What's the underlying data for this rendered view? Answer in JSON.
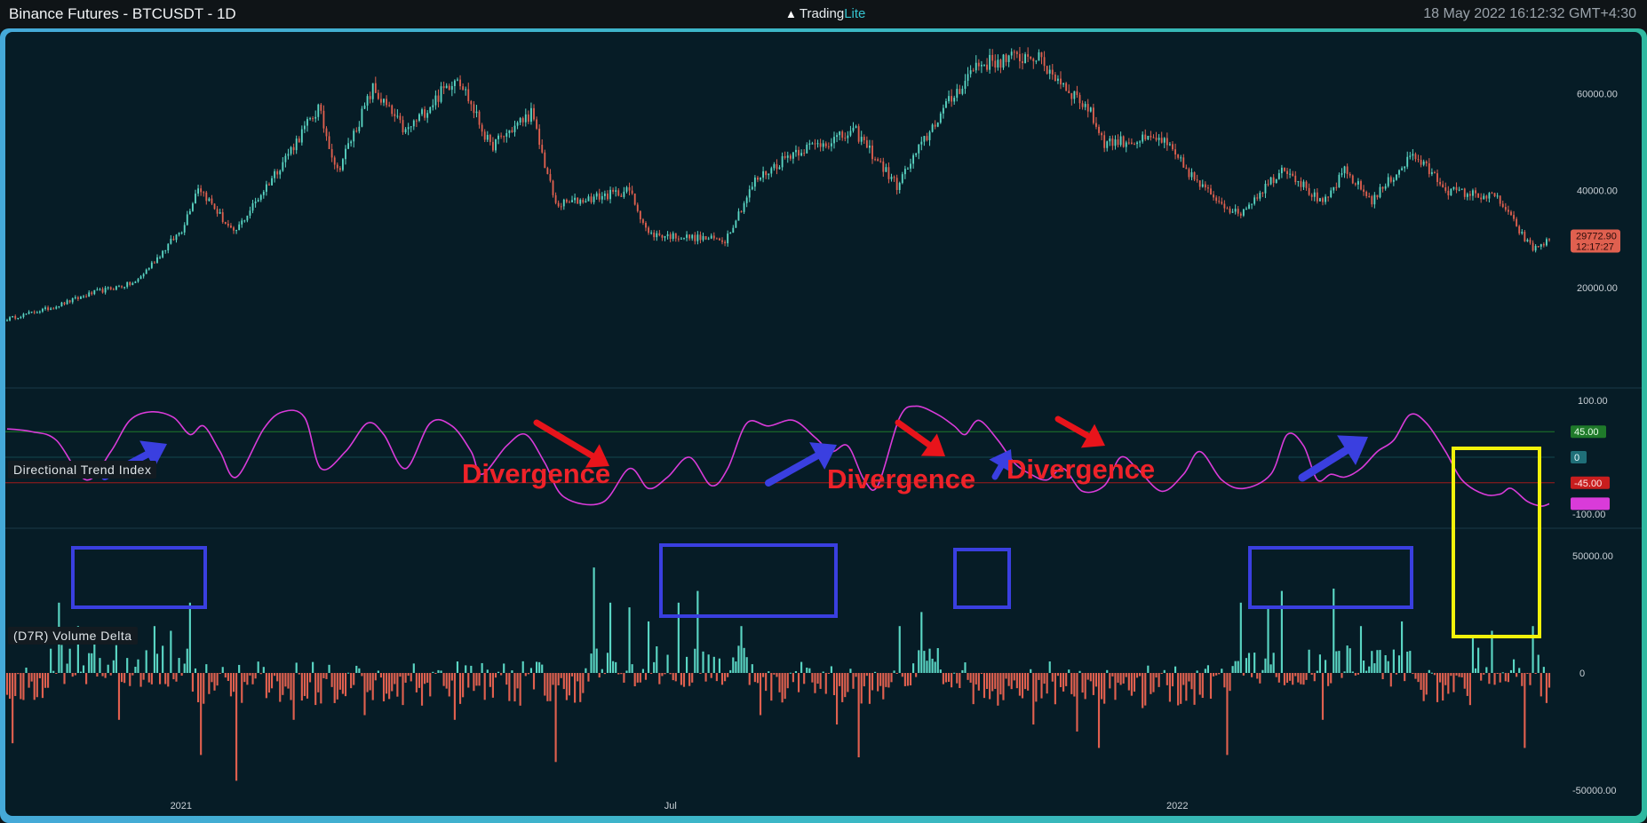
{
  "header": {
    "title": "Binance Futures - BTCUSDT - 1D",
    "brand_name": "Trading",
    "brand_suffix": "Lite",
    "timestamp": "18 May 2022 16:12:32 GMT+4:30"
  },
  "colors": {
    "background": "#061c26",
    "frame": "#3bb8c6",
    "up": "#5ad6c4",
    "down": "#e0604f",
    "dti_line": "#d93bd9",
    "upper_level": "#1f7a2a",
    "lower_level": "#a11b1b",
    "annotation_text": "#ee2229",
    "box_blue": "#3a3fe0",
    "box_yellow": "#f2f20a"
  },
  "indicator": {
    "label": "Directional Trend Index"
  },
  "volume_delta": {
    "label": "(D7R) Volume Delta"
  },
  "annotations": {
    "divergence_1": "Divergence",
    "divergence_2": "Divergence",
    "divergence_3": "Divergence"
  },
  "chart_data": [
    {
      "type": "candlestick",
      "price_ticks": [
        "60000.00",
        "40000.00",
        "20000.00"
      ],
      "last_price": "29772.90",
      "countdown": "12:17:27",
      "x_ticks": [
        "2021",
        "Jul",
        "2022"
      ],
      "ylim": [
        0,
        72000
      ],
      "close_path": [
        [
          "2020-10-30",
          13500
        ],
        [
          "2020-11-15",
          15800
        ],
        [
          "2020-12-01",
          19000
        ],
        [
          "2020-12-16",
          21000
        ],
        [
          "2021-01-02",
          32000
        ],
        [
          "2021-01-08",
          41000
        ],
        [
          "2021-01-21",
          31000
        ],
        [
          "2021-02-08",
          46000
        ],
        [
          "2021-02-21",
          57000
        ],
        [
          "2021-02-28",
          44000
        ],
        [
          "2021-03-13",
          61000
        ],
        [
          "2021-03-25",
          52000
        ],
        [
          "2021-04-13",
          64000
        ],
        [
          "2021-04-25",
          49000
        ],
        [
          "2021-05-10",
          56000
        ],
        [
          "2021-05-19",
          37000
        ],
        [
          "2021-06-15",
          40000
        ],
        [
          "2021-06-22",
          31000
        ],
        [
          "2021-07-20",
          29800
        ],
        [
          "2021-07-31",
          42000
        ],
        [
          "2021-08-14",
          48000
        ],
        [
          "2021-09-06",
          52000
        ],
        [
          "2021-09-21",
          41000
        ],
        [
          "2021-10-06",
          55000
        ],
        [
          "2021-10-20",
          66000
        ],
        [
          "2021-11-10",
          68000
        ],
        [
          "2021-11-30",
          57000
        ],
        [
          "2021-12-06",
          50000
        ],
        [
          "2021-12-27",
          50500
        ],
        [
          "2022-01-10",
          41000
        ],
        [
          "2022-01-24",
          35000
        ],
        [
          "2022-02-10",
          45000
        ],
        [
          "2022-02-24",
          37000
        ],
        [
          "2022-03-04",
          44000
        ],
        [
          "2022-03-14",
          38000
        ],
        [
          "2022-03-29",
          47500
        ],
        [
          "2022-04-11",
          40000
        ],
        [
          "2022-04-29",
          38500
        ],
        [
          "2022-05-09",
          30000
        ],
        [
          "2022-05-12",
          28000
        ],
        [
          "2022-05-18",
          29772.9
        ]
      ]
    },
    {
      "type": "line",
      "name": "Directional Trend Index",
      "ticks": [
        "100.00",
        "-100.00"
      ],
      "levels": [
        "45.00",
        "0",
        "-45.00"
      ],
      "ylim": [
        -122,
        122
      ],
      "points": [
        [
          "2020-10-30",
          50
        ],
        [
          "2020-11-08",
          45
        ],
        [
          "2020-11-17",
          30
        ],
        [
          "2020-11-28",
          -40
        ],
        [
          "2020-12-07",
          10
        ],
        [
          "2020-12-14",
          65
        ],
        [
          "2020-12-22",
          80
        ],
        [
          "2020-12-30",
          70
        ],
        [
          "2021-01-05",
          40
        ],
        [
          "2021-01-10",
          55
        ],
        [
          "2021-01-16",
          10
        ],
        [
          "2021-01-22",
          -35
        ],
        [
          "2021-02-01",
          50
        ],
        [
          "2021-02-08",
          80
        ],
        [
          "2021-02-16",
          70
        ],
        [
          "2021-02-22",
          -20
        ],
        [
          "2021-03-03",
          10
        ],
        [
          "2021-03-11",
          60
        ],
        [
          "2021-03-17",
          40
        ],
        [
          "2021-03-25",
          -20
        ],
        [
          "2021-04-03",
          60
        ],
        [
          "2021-04-11",
          55
        ],
        [
          "2021-04-18",
          10
        ],
        [
          "2021-04-22",
          -30
        ],
        [
          "2021-05-01",
          20
        ],
        [
          "2021-05-08",
          40
        ],
        [
          "2021-05-15",
          -10
        ],
        [
          "2021-05-22",
          -70
        ],
        [
          "2021-06-05",
          -80
        ],
        [
          "2021-06-15",
          -20
        ],
        [
          "2021-06-22",
          -55
        ],
        [
          "2021-06-29",
          -35
        ],
        [
          "2021-07-07",
          0
        ],
        [
          "2021-07-15",
          -50
        ],
        [
          "2021-07-21",
          -20
        ],
        [
          "2021-07-28",
          60
        ],
        [
          "2021-08-05",
          55
        ],
        [
          "2021-08-14",
          65
        ],
        [
          "2021-08-22",
          35
        ],
        [
          "2021-08-28",
          10
        ],
        [
          "2021-09-03",
          20
        ],
        [
          "2021-09-09",
          -40
        ],
        [
          "2021-09-14",
          -50
        ],
        [
          "2021-09-22",
          70
        ],
        [
          "2021-09-28",
          90
        ],
        [
          "2021-10-06",
          75
        ],
        [
          "2021-10-12",
          55
        ],
        [
          "2021-10-16",
          40
        ],
        [
          "2021-10-21",
          65
        ],
        [
          "2021-10-28",
          30
        ],
        [
          "2021-11-03",
          -10
        ],
        [
          "2021-11-09",
          -30
        ],
        [
          "2021-11-15",
          -40
        ],
        [
          "2021-11-21",
          -20
        ],
        [
          "2021-11-28",
          -60
        ],
        [
          "2021-12-06",
          -50
        ],
        [
          "2021-12-12",
          0
        ],
        [
          "2021-12-18",
          -20
        ],
        [
          "2021-12-27",
          -60
        ],
        [
          "2022-01-04",
          -30
        ],
        [
          "2022-01-10",
          10
        ],
        [
          "2022-01-18",
          -40
        ],
        [
          "2022-01-26",
          -55
        ],
        [
          "2022-02-05",
          -30
        ],
        [
          "2022-02-11",
          40
        ],
        [
          "2022-02-17",
          20
        ],
        [
          "2022-02-22",
          -40
        ],
        [
          "2022-02-27",
          -30
        ],
        [
          "2022-03-04",
          -35
        ],
        [
          "2022-03-10",
          -20
        ],
        [
          "2022-03-16",
          10
        ],
        [
          "2022-03-22",
          30
        ],
        [
          "2022-03-28",
          75
        ],
        [
          "2022-04-03",
          60
        ],
        [
          "2022-04-10",
          10
        ],
        [
          "2022-04-16",
          -40
        ],
        [
          "2022-04-24",
          -65
        ],
        [
          "2022-04-30",
          -65
        ],
        [
          "2022-05-04",
          -55
        ],
        [
          "2022-05-10",
          -78
        ],
        [
          "2022-05-15",
          -86
        ],
        [
          "2022-05-18",
          -82
        ]
      ]
    },
    {
      "type": "bar",
      "name": "(D7R) Volume Delta",
      "ticks": [
        "50000.00",
        "0",
        "-50000.00"
      ],
      "ylim": [
        -61000,
        61000
      ],
      "spikes": [
        [
          "2020-11-01",
          -30000
        ],
        [
          "2020-11-18",
          30000
        ],
        [
          "2020-11-25",
          20000
        ],
        [
          "2020-12-01",
          15000
        ],
        [
          "2020-12-10",
          -20000
        ],
        [
          "2020-12-23",
          20000
        ],
        [
          "2020-12-29",
          18000
        ],
        [
          "2021-01-05",
          30000
        ],
        [
          "2021-01-09",
          -35000
        ],
        [
          "2021-01-22",
          -46000
        ],
        [
          "2021-02-12",
          -20000
        ],
        [
          "2021-03-10",
          -18000
        ],
        [
          "2021-04-12",
          -20000
        ],
        [
          "2021-05-19",
          -38000
        ],
        [
          "2021-06-02",
          45000
        ],
        [
          "2021-06-08",
          30000
        ],
        [
          "2021-06-15",
          28000
        ],
        [
          "2021-06-22",
          22000
        ],
        [
          "2021-07-03",
          30000
        ],
        [
          "2021-07-10",
          35000
        ],
        [
          "2021-07-26",
          20000
        ],
        [
          "2021-08-02",
          -18000
        ],
        [
          "2021-08-30",
          -22000
        ],
        [
          "2021-09-07",
          -36000
        ],
        [
          "2021-09-22",
          20000
        ],
        [
          "2021-09-30",
          26000
        ],
        [
          "2021-11-10",
          -22000
        ],
        [
          "2021-11-26",
          -25000
        ],
        [
          "2021-12-04",
          -32000
        ],
        [
          "2021-12-20",
          -15000
        ],
        [
          "2022-01-20",
          -35000
        ],
        [
          "2022-01-25",
          30000
        ],
        [
          "2022-02-04",
          28000
        ],
        [
          "2022-02-09",
          35000
        ],
        [
          "2022-02-24",
          -20000
        ],
        [
          "2022-02-28",
          36000
        ],
        [
          "2022-03-10",
          20000
        ],
        [
          "2022-03-25",
          22000
        ],
        [
          "2022-04-20",
          15000
        ],
        [
          "2022-04-27",
          18000
        ],
        [
          "2022-05-09",
          -32000
        ],
        [
          "2022-05-12",
          20000
        ],
        [
          "2022-05-15",
          -10000
        ]
      ]
    }
  ]
}
